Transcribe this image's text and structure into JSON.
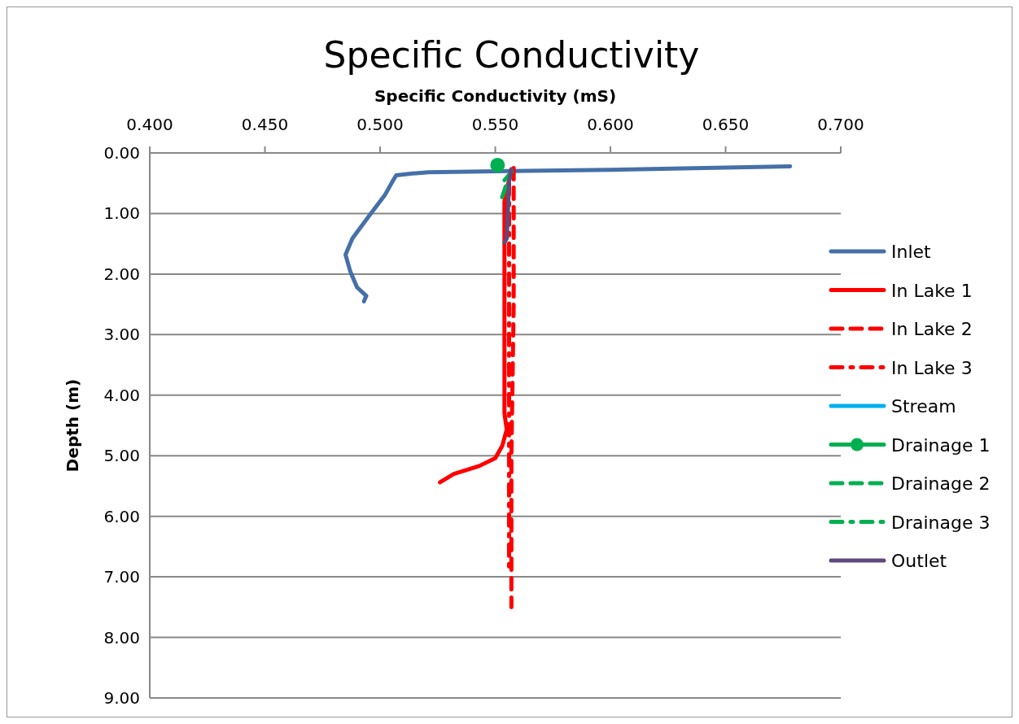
{
  "chart_data": {
    "type": "line",
    "title": "Specific Conductivity",
    "xlabel": "Specific Conductivity (mS)",
    "ylabel": "Depth (m)",
    "xlim": [
      0.4,
      0.7
    ],
    "xticks": [
      {
        "value": 0.4,
        "label": "0.400"
      },
      {
        "value": 0.45,
        "label": "0.450"
      },
      {
        "value": 0.5,
        "label": "0.500"
      },
      {
        "value": 0.55,
        "label": "0.550"
      },
      {
        "value": 0.6,
        "label": "0.600"
      },
      {
        "value": 0.65,
        "label": "0.650"
      },
      {
        "value": 0.7,
        "label": "0.700"
      }
    ],
    "ylim": [
      9,
      0
    ],
    "yticks": [
      {
        "value": 0,
        "label": "0.00"
      },
      {
        "value": 1,
        "label": "1.00"
      },
      {
        "value": 2,
        "label": "2.00"
      },
      {
        "value": 3,
        "label": "3.00"
      },
      {
        "value": 4,
        "label": "4.00"
      },
      {
        "value": 5,
        "label": "5.00"
      },
      {
        "value": 6,
        "label": "6.00"
      },
      {
        "value": 7,
        "label": "7.00"
      },
      {
        "value": 8,
        "label": "8.00"
      },
      {
        "value": 9,
        "label": "9.00"
      }
    ],
    "grid": "y",
    "legend": "right",
    "series": [
      {
        "name": "Inlet",
        "color": "#4570a8",
        "line_style": "solid",
        "marker": "none",
        "x": [
          0.678,
          0.6,
          0.557,
          0.521,
          0.514,
          0.507,
          0.506,
          0.502,
          0.495,
          0.488,
          0.485,
          0.487,
          0.49,
          0.494,
          0.493
        ],
        "values": [
          0.22,
          0.28,
          0.3,
          0.32,
          0.34,
          0.37,
          0.43,
          0.7,
          1.05,
          1.41,
          1.68,
          1.95,
          2.22,
          2.36,
          2.45
        ]
      },
      {
        "name": "In Lake 1",
        "color": "#ff0000",
        "line_style": "solid",
        "marker": "none",
        "x": [
          0.557,
          0.554,
          0.554,
          0.554,
          0.555,
          0.553,
          0.55,
          0.543,
          0.532,
          0.526
        ],
        "values": [
          0.27,
          0.8,
          3.2,
          4.3,
          4.57,
          4.84,
          5.04,
          5.17,
          5.3,
          5.44
        ]
      },
      {
        "name": "In Lake 2",
        "color": "#ff0000",
        "line_style": "dashed",
        "marker": "none",
        "x": [
          0.558,
          0.558,
          0.557,
          0.557
        ],
        "values": [
          0.25,
          2.5,
          5.0,
          7.5
        ]
      },
      {
        "name": "In Lake 3",
        "color": "#ff0000",
        "line_style": "dashdot",
        "marker": "none",
        "x": [
          0.556,
          0.556,
          0.556,
          0.556
        ],
        "values": [
          0.5,
          3.0,
          5.5,
          6.95
        ]
      },
      {
        "name": "Stream",
        "color": "#00b0f0",
        "line_style": "solid",
        "marker": "none"
      },
      {
        "name": "Drainage 1",
        "color": "#00b050",
        "line_style": "solid",
        "marker": "circle",
        "x": [
          0.551
        ],
        "values": [
          0.2
        ]
      },
      {
        "name": "Drainage 2",
        "color": "#00b050",
        "line_style": "dashed",
        "marker": "none",
        "x": [
          0.554,
          0.558
        ],
        "values": [
          0.45,
          0.27
        ]
      },
      {
        "name": "Drainage 3",
        "color": "#00b050",
        "line_style": "dashdot",
        "marker": "none",
        "x": [
          0.553,
          0.555,
          0.558
        ],
        "values": [
          0.73,
          0.5,
          0.28
        ]
      },
      {
        "name": "Outlet",
        "color": "#604a7b",
        "line_style": "solid",
        "marker": "none",
        "x": [
          0.557,
          0.556,
          0.555,
          0.554
        ],
        "values": [
          0.27,
          0.47,
          1.41,
          1.48
        ]
      }
    ]
  }
}
